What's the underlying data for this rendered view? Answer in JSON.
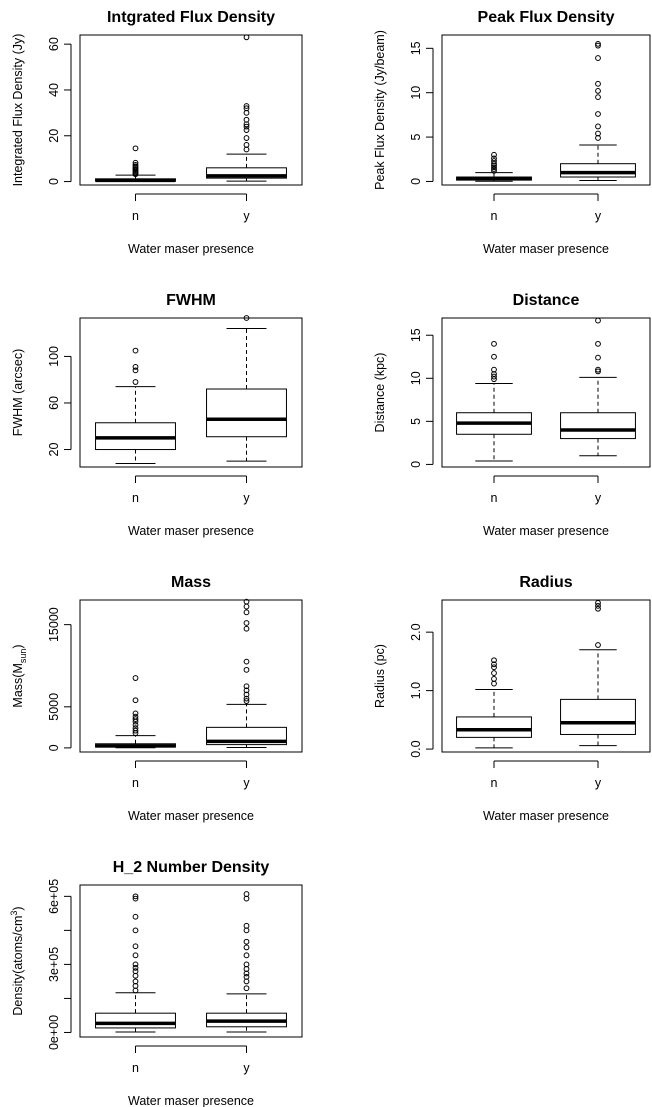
{
  "chart_data": [
    {
      "type": "boxplot",
      "title": "Intgrated Flux Density",
      "xlabel": "Water maser presence",
      "ylabel": "Integrated Flux Density (Jy)",
      "categories": [
        "n",
        "y"
      ],
      "ylim": [
        -1.5,
        64
      ],
      "yticks": [
        0,
        20,
        40,
        60
      ],
      "yticklabels": [
        "0",
        "20",
        "40",
        "60"
      ],
      "boxes": [
        {
          "category": "n",
          "whisker_low": 0.05,
          "q1": 0.2,
          "median": 0.5,
          "q3": 1.2,
          "whisker_high": 2.8,
          "outliers": [
            3.2,
            3.6,
            4.0,
            4.5,
            5.0,
            5.5,
            6.0,
            6.6,
            7.3,
            8.2,
            14.5
          ]
        },
        {
          "category": "y",
          "whisker_low": 0.2,
          "q1": 1.5,
          "median": 2.5,
          "q3": 6.0,
          "whisker_high": 12.0,
          "outliers": [
            14.0,
            16.0,
            19.0,
            22.5,
            24.0,
            25.0,
            27.0,
            30.0,
            32.0,
            33.0,
            63.0
          ]
        }
      ]
    },
    {
      "type": "boxplot",
      "title": "Peak Flux Density",
      "xlabel": "Water maser presence",
      "ylabel": "Peak Flux Density (Jy/beam)",
      "categories": [
        "n",
        "y"
      ],
      "ylim": [
        -0.4,
        16.5
      ],
      "yticks": [
        0,
        5,
        10,
        15
      ],
      "yticklabels": [
        "0",
        "5",
        "10",
        "15"
      ],
      "boxes": [
        {
          "category": "n",
          "whisker_low": 0.02,
          "q1": 0.15,
          "median": 0.3,
          "q3": 0.5,
          "whisker_high": 1.0,
          "outliers": [
            1.2,
            1.4,
            1.6,
            1.8,
            2.0,
            2.3,
            2.6,
            3.0
          ]
        },
        {
          "category": "y",
          "whisker_low": 0.1,
          "q1": 0.5,
          "median": 1.0,
          "q3": 2.0,
          "whisker_high": 4.1,
          "outliers": [
            4.9,
            5.4,
            6.2,
            7.6,
            9.5,
            10.2,
            11.0,
            13.9,
            15.3,
            15.5
          ]
        }
      ]
    },
    {
      "type": "boxplot",
      "title": "FWHM",
      "xlabel": "Water maser presence",
      "ylabel": "FWHM (arcsec)",
      "categories": [
        "n",
        "y"
      ],
      "ylim": [
        5,
        133
      ],
      "yticks": [
        20,
        60,
        100
      ],
      "yticklabels": [
        "20",
        "60",
        "100"
      ],
      "boxes": [
        {
          "category": "n",
          "whisker_low": 8,
          "q1": 20,
          "median": 30,
          "q3": 43,
          "whisker_high": 74,
          "outliers": [
            78,
            88,
            91,
            105
          ]
        },
        {
          "category": "y",
          "whisker_low": 10,
          "q1": 31,
          "median": 46,
          "q3": 72,
          "whisker_high": 124,
          "outliers": [
            133
          ]
        }
      ]
    },
    {
      "type": "boxplot",
      "title": "Distance",
      "xlabel": "Water maser presence",
      "ylabel": "Distance (kpc)",
      "categories": [
        "n",
        "y"
      ],
      "ylim": [
        -0.3,
        17
      ],
      "yticks": [
        0,
        5,
        10,
        15
      ],
      "yticklabels": [
        "0",
        "5",
        "10",
        "15"
      ],
      "boxes": [
        {
          "category": "n",
          "whisker_low": 0.4,
          "q1": 3.5,
          "median": 4.8,
          "q3": 6.0,
          "whisker_high": 9.4,
          "outliers": [
            9.9,
            10.2,
            10.5,
            11.0,
            12.5,
            14.0
          ]
        },
        {
          "category": "y",
          "whisker_low": 1.0,
          "q1": 3.0,
          "median": 4.0,
          "q3": 6.0,
          "whisker_high": 10.1,
          "outliers": [
            10.8,
            11.0,
            12.4,
            14.0,
            16.7
          ]
        }
      ]
    },
    {
      "type": "boxplot",
      "title": "Mass",
      "xlabel": "Water maser presence",
      "ylabel": "Mass(M",
      "ylabel_subscript": "sun",
      "ylabel_suffix": ")",
      "categories": [
        "n",
        "y"
      ],
      "ylim": [
        -500,
        18000
      ],
      "yticks": [
        0,
        5000,
        15000
      ],
      "yticklabels": [
        "0",
        "5000",
        "15000"
      ],
      "boxes": [
        {
          "category": "n",
          "whisker_low": 20,
          "q1": 100,
          "median": 250,
          "q3": 500,
          "whisker_high": 1500,
          "outliers": [
            1800,
            2100,
            2400,
            2800,
            3200,
            3500,
            3800,
            4200,
            5800,
            8500
          ]
        },
        {
          "category": "y",
          "whisker_low": 50,
          "q1": 400,
          "median": 800,
          "q3": 2500,
          "whisker_high": 5300,
          "outliers": [
            5700,
            6000,
            6500,
            7000,
            7500,
            9500,
            10500,
            14500,
            15200,
            16500,
            17200,
            17800
          ]
        }
      ]
    },
    {
      "type": "boxplot",
      "title": "Radius",
      "xlabel": "Water maser presence",
      "ylabel": "Radius (pc)",
      "categories": [
        "n",
        "y"
      ],
      "ylim": [
        -0.05,
        2.55
      ],
      "yticks": [
        0.0,
        1.0,
        2.0
      ],
      "yticklabels": [
        "0.0",
        "1.0",
        "2.0"
      ],
      "boxes": [
        {
          "category": "n",
          "whisker_low": 0.02,
          "q1": 0.2,
          "median": 0.33,
          "q3": 0.55,
          "whisker_high": 1.02,
          "outliers": [
            1.12,
            1.2,
            1.3,
            1.4,
            1.45,
            1.52
          ]
        },
        {
          "category": "y",
          "whisker_low": 0.06,
          "q1": 0.25,
          "median": 0.45,
          "q3": 0.85,
          "whisker_high": 1.7,
          "outliers": [
            1.78,
            2.4,
            2.45,
            2.5
          ]
        }
      ]
    },
    {
      "type": "boxplot",
      "title": "H_2 Number Density",
      "xlabel": "Water maser presence",
      "ylabel": "Density(atoms/cm",
      "ylabel_superscript": "3",
      "ylabel_suffix": ")",
      "categories": [
        "n",
        "y"
      ],
      "ylim": [
        -20000,
        650000
      ],
      "yticks": [
        0,
        300000,
        600000
      ],
      "yticklabels": [
        "0e+00",
        "3e+05",
        "6e+05"
      ],
      "yticks_minor": [
        150000,
        450000
      ],
      "boxes": [
        {
          "category": "n",
          "whisker_low": 2000,
          "q1": 20000,
          "median": 40000,
          "q3": 85000,
          "whisker_high": 175000,
          "outliers": [
            185000,
            205000,
            225000,
            250000,
            270000,
            285000,
            300000,
            340000,
            380000,
            450000,
            510000,
            590000,
            600000
          ]
        },
        {
          "category": "y",
          "whisker_low": 2000,
          "q1": 25000,
          "median": 50000,
          "q3": 85000,
          "whisker_high": 170000,
          "outliers": [
            195000,
            225000,
            245000,
            260000,
            280000,
            300000,
            340000,
            375000,
            400000,
            450000,
            470000,
            590000,
            610000
          ]
        }
      ]
    }
  ]
}
